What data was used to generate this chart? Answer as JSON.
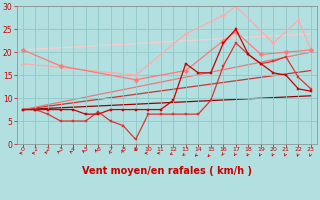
{
  "background_color": "#b2e0e0",
  "grid_color": "#90c8c8",
  "xlabel": "Vent moyen/en rafales ( km/h )",
  "xlabel_color": "#cc0000",
  "xlabel_fontsize": 7,
  "tick_color": "#cc0000",
  "tick_fontsize": 5,
  "xlim": [
    -0.5,
    23.5
  ],
  "ylim": [
    0,
    30
  ],
  "yticks": [
    0,
    5,
    10,
    15,
    20,
    25,
    30
  ],
  "xticks": [
    0,
    1,
    2,
    3,
    4,
    5,
    6,
    7,
    8,
    9,
    10,
    11,
    12,
    13,
    14,
    15,
    16,
    17,
    18,
    19,
    20,
    21,
    22,
    23
  ],
  "series": [
    {
      "x": [
        0,
        1,
        2,
        3,
        4,
        5,
        6,
        7,
        8,
        9,
        10,
        11,
        12,
        13,
        14,
        15,
        16,
        17,
        18,
        19,
        20,
        21,
        22,
        23
      ],
      "y": [
        7.5,
        7.5,
        7.5,
        7.5,
        7.5,
        6.5,
        6.5,
        7.5,
        7.5,
        7.5,
        7.5,
        7.5,
        9.5,
        17.5,
        15.5,
        15.5,
        22,
        25,
        19.5,
        17.5,
        15.5,
        15,
        12,
        11.5
      ],
      "color": "#cc0000",
      "linewidth": 0.9,
      "marker": "s",
      "markersize": 2.0,
      "zorder": 5
    },
    {
      "x": [
        0,
        1,
        2,
        3,
        4,
        5,
        6,
        7,
        8,
        9,
        10,
        11,
        12,
        13,
        14,
        15,
        16,
        17,
        18,
        19,
        20,
        21,
        22,
        23
      ],
      "y": [
        7.5,
        7.5,
        6.5,
        5,
        5,
        5,
        7,
        5,
        4,
        1,
        6.5,
        6.5,
        6.5,
        6.5,
        6.5,
        9.5,
        17,
        22,
        19.5,
        17.5,
        18,
        19,
        14.5,
        12
      ],
      "color": "#dd3333",
      "linewidth": 0.9,
      "marker": "s",
      "markersize": 2.0,
      "zorder": 4
    },
    {
      "x": [
        0,
        3,
        9,
        13,
        16,
        17,
        19,
        21,
        23
      ],
      "y": [
        20.5,
        17,
        14,
        16,
        22.5,
        24.5,
        19.5,
        20,
        20.5
      ],
      "color": "#ff7777",
      "linewidth": 0.9,
      "marker": "D",
      "markersize": 2.5,
      "zorder": 3
    },
    {
      "x": [
        0,
        9,
        13,
        16,
        17,
        20,
        22,
        23
      ],
      "y": [
        17.5,
        15,
        24,
        28,
        30,
        22,
        27,
        20.5
      ],
      "color": "#ffaaaa",
      "linewidth": 0.9,
      "marker": "D",
      "markersize": 2.0,
      "zorder": 2
    },
    {
      "x": [
        0,
        23
      ],
      "y": [
        7.5,
        10.5
      ],
      "color": "#990000",
      "linewidth": 0.9,
      "marker": null,
      "markersize": 0,
      "zorder": 1
    },
    {
      "x": [
        0,
        23
      ],
      "y": [
        7.5,
        16
      ],
      "color": "#cc3333",
      "linewidth": 0.9,
      "marker": null,
      "markersize": 0,
      "zorder": 1
    },
    {
      "x": [
        0,
        23
      ],
      "y": [
        7.5,
        20
      ],
      "color": "#ee7777",
      "linewidth": 0.9,
      "marker": null,
      "markersize": 0,
      "zorder": 1
    },
    {
      "x": [
        0,
        23
      ],
      "y": [
        20.5,
        24
      ],
      "color": "#ffcccc",
      "linewidth": 0.9,
      "marker": null,
      "markersize": 0,
      "zorder": 1
    }
  ],
  "arrow_angles": [
    270,
    270,
    262,
    255,
    255,
    248,
    242,
    236,
    225,
    180,
    270,
    270,
    280,
    288,
    295,
    300,
    305,
    310,
    315,
    315,
    315,
    315,
    318,
    320
  ]
}
